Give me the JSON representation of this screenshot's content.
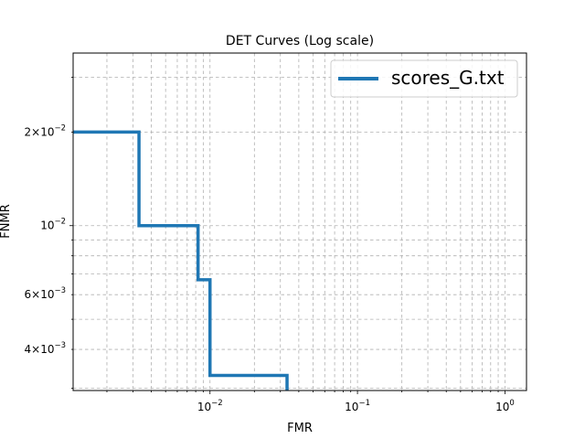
{
  "chart_data": {
    "type": "line",
    "title": "DET Curves (Log scale)",
    "xlabel": "FMR",
    "ylabel": "FNMR",
    "xscale": "log",
    "yscale": "log",
    "xlim": [
      0.00118,
      1.4
    ],
    "ylim": [
      0.00295,
      0.0359
    ],
    "grid": "both major and minor, dashed",
    "legend_position": "top-right",
    "x_tick_labels": [
      {
        "value": 0.01,
        "base": "10",
        "exp": "−2"
      },
      {
        "value": 0.1,
        "base": "10",
        "exp": "−1"
      },
      {
        "value": 1,
        "base": "10",
        "exp": "0"
      }
    ],
    "y_tick_labels": [
      {
        "value": 0.004,
        "mant": "4",
        "base": "10",
        "exp": "−3"
      },
      {
        "value": 0.006,
        "mant": "6",
        "base": "10",
        "exp": "−3"
      },
      {
        "value": 0.01,
        "mant": "",
        "base": "10",
        "exp": "−2"
      },
      {
        "value": 0.02,
        "mant": "2",
        "base": "10",
        "exp": "−2"
      }
    ],
    "series": [
      {
        "name": "scores_G.txt",
        "color": "#1f77b4",
        "step": "post",
        "x": [
          0.0011,
          0.0033,
          0.0083,
          0.01,
          0.0333
        ],
        "y": [
          0.02,
          0.01,
          0.0067,
          0.0033,
          0.0029
        ]
      }
    ]
  }
}
